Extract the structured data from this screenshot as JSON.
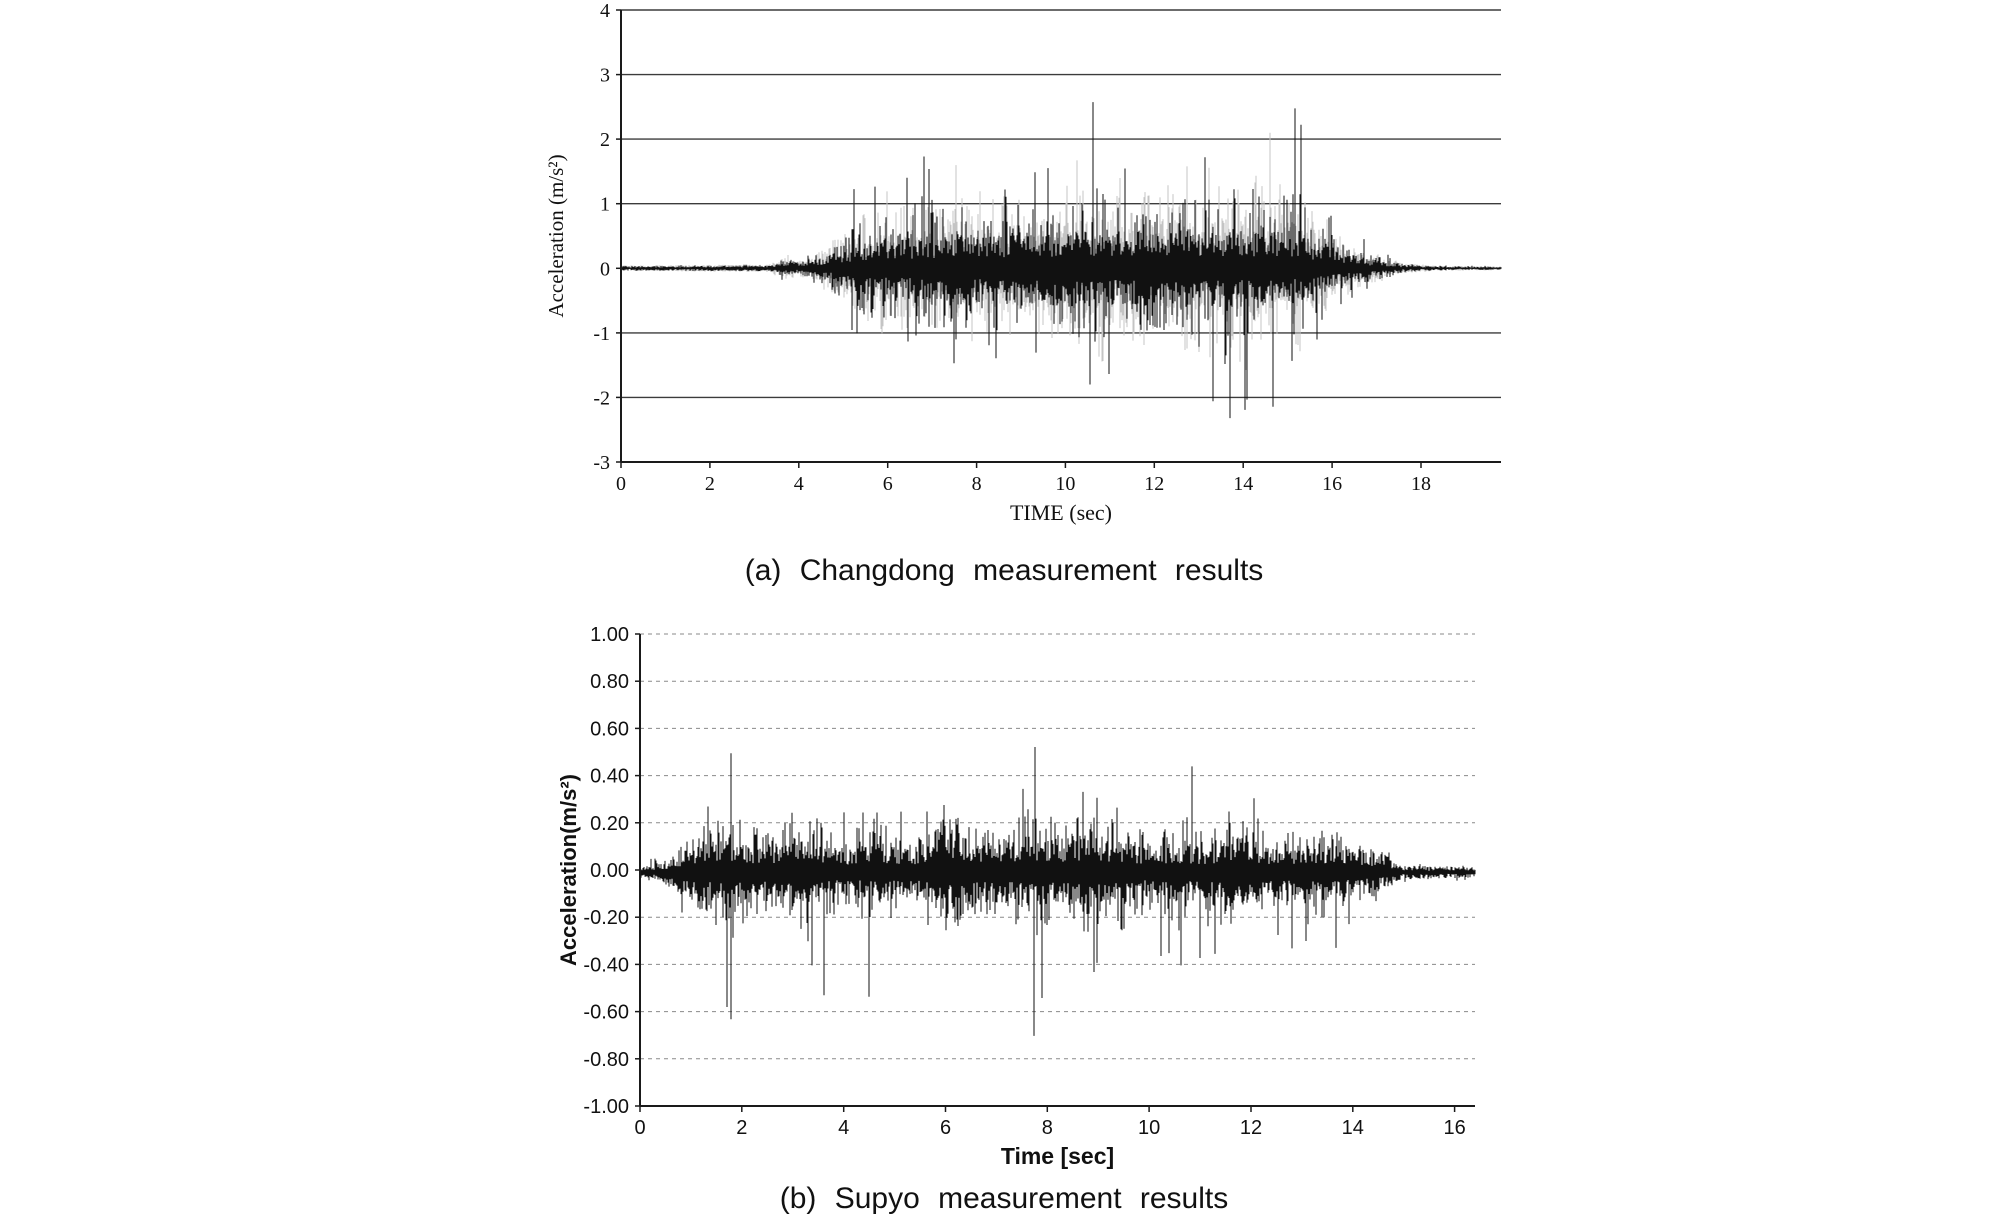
{
  "page": {
    "background": "#ffffff"
  },
  "captions": {
    "a": "(a) Changdong measurement results",
    "b": "(b) Supyo measurement results"
  },
  "colors": {
    "waveform": "#111111",
    "waveform_haze": "#c4c4c4",
    "grid_solid": "#3c3c3c",
    "grid_dashed": "#8a8a8a",
    "axis": "#1a1a1a",
    "text": "#111111"
  },
  "chart_data": [
    {
      "type": "line",
      "name": "Changdong acceleration time history",
      "title": "",
      "xlabel": "TIME (sec)",
      "ylabel": "Acceleration (m/s²)",
      "xlim": [
        0,
        19.8
      ],
      "ylim": [
        -3,
        4
      ],
      "xticks": [
        "0",
        "2",
        "4",
        "6",
        "8",
        "10",
        "12",
        "14",
        "16",
        "18"
      ],
      "yticks": [
        "4",
        "3",
        "2",
        "1",
        "0",
        "-1",
        "-2",
        "-3"
      ],
      "grid": "solid-horizontal",
      "legend": "none",
      "peak_positive": 2.9,
      "peak_negative": -2.3,
      "active_interval_sec": [
        4,
        17
      ],
      "envelope_t_body_spike": [
        [
          0,
          0.03,
          0.05
        ],
        [
          3.3,
          0.04,
          0.06
        ],
        [
          3.7,
          0.1,
          0.28
        ],
        [
          4.0,
          0.07,
          0.15
        ],
        [
          4.5,
          0.15,
          0.45
        ],
        [
          5.0,
          0.3,
          0.9
        ],
        [
          5.6,
          0.42,
          1.9
        ],
        [
          6.1,
          0.45,
          1.5
        ],
        [
          6.6,
          0.5,
          1.75
        ],
        [
          7.1,
          0.5,
          1.95
        ],
        [
          7.6,
          0.55,
          2.0
        ],
        [
          8.1,
          0.5,
          1.55
        ],
        [
          8.7,
          0.58,
          2.1
        ],
        [
          9.3,
          0.55,
          1.7
        ],
        [
          9.9,
          0.6,
          1.8
        ],
        [
          10.3,
          0.6,
          2.3
        ],
        [
          10.9,
          0.62,
          2.9
        ],
        [
          11.3,
          0.58,
          1.7
        ],
        [
          11.9,
          0.6,
          2.2
        ],
        [
          12.4,
          0.58,
          1.6
        ],
        [
          12.9,
          0.62,
          2.8
        ],
        [
          13.5,
          0.62,
          2.9
        ],
        [
          14.0,
          0.6,
          2.85
        ],
        [
          14.6,
          0.58,
          2.6
        ],
        [
          15.2,
          0.55,
          2.9
        ],
        [
          15.7,
          0.4,
          1.3
        ],
        [
          16.2,
          0.25,
          0.7
        ],
        [
          16.8,
          0.15,
          0.45
        ],
        [
          17.2,
          0.1,
          0.3
        ],
        [
          17.6,
          0.05,
          0.1
        ],
        [
          18.4,
          0.025,
          0.05
        ],
        [
          19.8,
          0.02,
          0.04
        ]
      ]
    },
    {
      "type": "line",
      "name": "Supyo acceleration time history",
      "title": "",
      "xlabel": "Time [sec]",
      "ylabel": "Acceleration(m/s²)",
      "xlim": [
        0,
        16.4
      ],
      "ylim": [
        -1,
        1
      ],
      "xticks": [
        "0",
        "2",
        "4",
        "6",
        "8",
        "10",
        "12",
        "14",
        "16"
      ],
      "yticks": [
        "1.00",
        "0.80",
        "0.60",
        "0.40",
        "0.20",
        "0.00",
        "-0.20",
        "-0.40",
        "-0.60",
        "-0.80",
        "-1.00"
      ],
      "grid": "dashed-horizontal",
      "legend": "none",
      "peak_positive": 0.67,
      "peak_negative": -0.78,
      "active_interval_sec": [
        0.5,
        15
      ],
      "envelope_t_body_spike": [
        [
          0,
          0.02,
          0.04
        ],
        [
          0.5,
          0.04,
          0.08
        ],
        [
          0.9,
          0.1,
          0.2
        ],
        [
          1.4,
          0.13,
          0.3
        ],
        [
          1.8,
          0.16,
          0.65
        ],
        [
          2.1,
          0.13,
          0.4
        ],
        [
          2.6,
          0.12,
          0.25
        ],
        [
          3.0,
          0.15,
          0.42
        ],
        [
          3.5,
          0.13,
          0.56
        ],
        [
          4.0,
          0.1,
          0.28
        ],
        [
          4.7,
          0.13,
          0.6
        ],
        [
          5.2,
          0.1,
          0.25
        ],
        [
          5.8,
          0.13,
          0.3
        ],
        [
          6.2,
          0.2,
          0.35
        ],
        [
          6.7,
          0.13,
          0.3
        ],
        [
          7.2,
          0.13,
          0.35
        ],
        [
          7.7,
          0.16,
          0.66
        ],
        [
          8.2,
          0.13,
          0.4
        ],
        [
          8.8,
          0.18,
          0.45
        ],
        [
          9.4,
          0.13,
          0.55
        ],
        [
          10.0,
          0.11,
          0.3
        ],
        [
          10.6,
          0.13,
          0.6
        ],
        [
          11.1,
          0.11,
          0.3
        ],
        [
          11.8,
          0.17,
          0.4
        ],
        [
          12.3,
          0.11,
          0.3
        ],
        [
          13.0,
          0.12,
          0.3
        ],
        [
          13.5,
          0.13,
          0.35
        ],
        [
          14.0,
          0.1,
          0.22
        ],
        [
          14.6,
          0.07,
          0.12
        ],
        [
          15.0,
          0.025,
          0.04
        ],
        [
          16.4,
          0.02,
          0.03
        ]
      ]
    }
  ]
}
